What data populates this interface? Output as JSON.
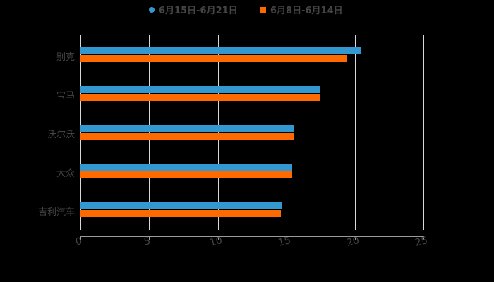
{
  "legend": [
    {
      "label": "6月15日-6月21日",
      "color": "#3498d0",
      "shape": "circle"
    },
    {
      "label": "6月8日-6月14日",
      "color": "#ff6a00",
      "shape": "square"
    }
  ],
  "chart_data": {
    "type": "bar",
    "orientation": "horizontal",
    "title": "",
    "xlabel": "",
    "ylabel": "",
    "categories": [
      "别克",
      "宝马",
      "沃尔沃",
      "大众",
      "吉利汽车"
    ],
    "series": [
      {
        "name": "6月15日-6月21日",
        "color": "#3498d0",
        "values": [
          20.4,
          17.5,
          15.6,
          15.4,
          14.7
        ]
      },
      {
        "name": "6月8日-6月14日",
        "color": "#ff6a00",
        "values": [
          19.4,
          17.5,
          15.6,
          15.4,
          14.6
        ]
      }
    ],
    "xlim": [
      0,
      25
    ],
    "xticks": [
      "0",
      "5",
      "10",
      "15",
      "20",
      "25"
    ],
    "grid": true,
    "legend_position": "top"
  }
}
